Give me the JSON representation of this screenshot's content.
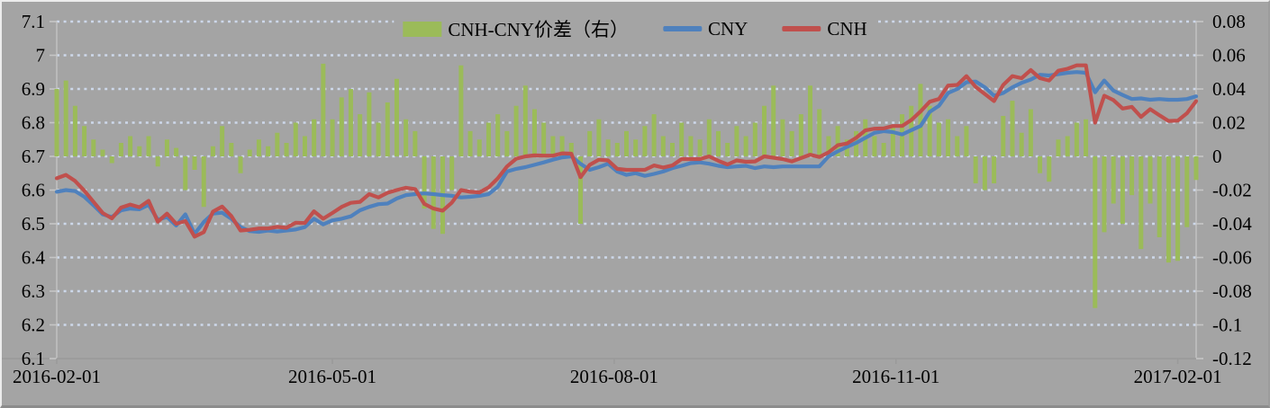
{
  "chart_data": {
    "type": "combo-bar-line",
    "title": "",
    "description_visible": false,
    "legend": [
      {
        "label": "CNH-CNY价差（右）",
        "type": "bar",
        "color": "#9BBB59"
      },
      {
        "label": "CNY",
        "type": "line",
        "color": "#4F81BD"
      },
      {
        "label": "CNH",
        "type": "line",
        "color": "#C0504D"
      }
    ],
    "left_axis": {
      "min": 6.1,
      "max": 7.1,
      "ticks": [
        "7.1",
        "7",
        "6.9",
        "6.8",
        "6.7",
        "6.6",
        "6.5",
        "6.4",
        "6.3",
        "6.2",
        "6.1"
      ]
    },
    "right_axis": {
      "min": -0.12,
      "max": 0.08,
      "ticks": [
        "0.08",
        "0.06",
        "0.04",
        "0.02",
        "0",
        "-0.02",
        "-0.04",
        "-0.06",
        "-0.08",
        "-0.1",
        "-0.12"
      ]
    },
    "x_axis": {
      "tick_labels": [
        "2016-02-01",
        "2016-05-01",
        "2016-08-01",
        "2016-11-01",
        "2017-02-01"
      ],
      "tick_days": [
        0,
        90,
        182,
        274,
        366
      ],
      "span_days": 372
    },
    "grid": "horizontal-dotted",
    "colors": {
      "bar": "#9BBB59",
      "cny": "#4F81BD",
      "cnh": "#C0504D",
      "plot_bg": "#A4A4A4",
      "gridline": "#CDD8EA",
      "axis": "#9A9A9A",
      "tick": "#C6C6C6",
      "text": "#000000"
    },
    "series": {
      "interval_days": 3,
      "cny": [
        6.595,
        6.6,
        6.597,
        6.58,
        6.555,
        6.528,
        6.52,
        6.54,
        6.545,
        6.543,
        6.556,
        6.512,
        6.52,
        6.495,
        6.528,
        6.47,
        6.505,
        6.53,
        6.533,
        6.515,
        6.49,
        6.478,
        6.476,
        6.48,
        6.477,
        6.48,
        6.483,
        6.49,
        6.515,
        6.498,
        6.51,
        6.515,
        6.522,
        6.54,
        6.55,
        6.558,
        6.56,
        6.575,
        6.585,
        6.588,
        6.59,
        6.588,
        6.585,
        6.583,
        6.578,
        6.58,
        6.583,
        6.588,
        6.61,
        6.655,
        6.663,
        6.668,
        6.675,
        6.682,
        6.69,
        6.697,
        6.7,
        6.678,
        6.66,
        6.668,
        6.678,
        6.655,
        6.645,
        6.65,
        6.642,
        6.648,
        6.655,
        6.665,
        6.672,
        6.68,
        6.682,
        6.678,
        6.672,
        6.668,
        6.67,
        6.672,
        6.665,
        6.67,
        6.668,
        6.67,
        6.67,
        6.67,
        6.67,
        6.67,
        6.7,
        6.715,
        6.728,
        6.74,
        6.755,
        6.77,
        6.775,
        6.772,
        6.765,
        6.778,
        6.79,
        6.832,
        6.85,
        6.888,
        6.9,
        6.92,
        6.922,
        6.905,
        6.88,
        6.888,
        6.905,
        6.918,
        6.928,
        6.942,
        6.94,
        6.944,
        6.948,
        6.95,
        6.948,
        6.89,
        6.925,
        6.895,
        6.882,
        6.87,
        6.872,
        6.868,
        6.87,
        6.868,
        6.868,
        6.87,
        6.878
      ],
      "cnh": [
        6.635,
        6.645,
        6.627,
        6.598,
        6.565,
        6.532,
        6.516,
        6.548,
        6.557,
        6.549,
        6.568,
        6.506,
        6.53,
        6.5,
        6.508,
        6.462,
        6.475,
        6.536,
        6.551,
        6.523,
        6.48,
        6.482,
        6.486,
        6.486,
        6.491,
        6.488,
        6.503,
        6.502,
        6.537,
        6.515,
        6.532,
        6.55,
        6.562,
        6.565,
        6.588,
        6.578,
        6.592,
        6.6,
        6.607,
        6.603,
        6.559,
        6.545,
        6.539,
        6.563,
        6.6,
        6.595,
        6.593,
        6.608,
        6.635,
        6.67,
        6.693,
        6.7,
        6.703,
        6.702,
        6.702,
        6.709,
        6.708,
        6.638,
        6.675,
        6.69,
        6.688,
        6.663,
        6.66,
        6.66,
        6.66,
        6.673,
        6.667,
        6.673,
        6.692,
        6.692,
        6.692,
        6.7,
        6.687,
        6.676,
        6.688,
        6.684,
        6.685,
        6.7,
        6.696,
        6.692,
        6.685,
        6.695,
        6.705,
        6.698,
        6.712,
        6.733,
        6.738,
        6.755,
        6.777,
        6.782,
        6.783,
        6.79,
        6.79,
        6.808,
        6.833,
        6.862,
        6.87,
        6.91,
        6.912,
        6.938,
        6.906,
        6.885,
        6.864,
        6.912,
        6.938,
        6.932,
        6.956,
        6.932,
        6.925,
        6.954,
        6.96,
        6.97,
        6.97,
        6.8,
        6.88,
        6.867,
        6.842,
        6.847,
        6.817,
        6.84,
        6.822,
        6.805,
        6.806,
        6.828,
        6.864
      ],
      "spread": [
        0.04,
        0.045,
        0.03,
        0.018,
        0.01,
        0.004,
        -0.004,
        0.008,
        0.012,
        0.006,
        0.012,
        -0.006,
        0.01,
        0.005,
        -0.02,
        -0.008,
        -0.03,
        0.006,
        0.018,
        0.008,
        -0.01,
        0.004,
        0.01,
        0.006,
        0.014,
        0.008,
        0.02,
        0.012,
        0.022,
        0.055,
        0.022,
        0.035,
        0.04,
        0.025,
        0.038,
        0.02,
        0.032,
        0.046,
        0.022,
        0.015,
        -0.031,
        -0.043,
        -0.046,
        -0.02,
        0.054,
        0.015,
        0.01,
        0.02,
        0.025,
        0.015,
        0.03,
        0.042,
        0.028,
        0.02,
        0.012,
        0.012,
        0.008,
        -0.04,
        0.015,
        0.022,
        0.01,
        0.008,
        0.015,
        0.01,
        0.018,
        0.025,
        0.012,
        0.008,
        0.02,
        0.012,
        0.01,
        0.022,
        0.015,
        0.008,
        0.018,
        0.012,
        0.02,
        0.03,
        0.042,
        0.022,
        0.015,
        0.025,
        0.042,
        0.028,
        0.012,
        0.018,
        0.01,
        0.015,
        0.022,
        0.012,
        0.008,
        0.018,
        0.025,
        0.03,
        0.043,
        0.03,
        0.02,
        0.022,
        0.012,
        0.018,
        -0.016,
        -0.02,
        -0.016,
        0.024,
        0.033,
        0.014,
        0.028,
        -0.01,
        -0.015,
        0.01,
        0.012,
        0.02,
        0.022,
        -0.09,
        -0.045,
        -0.028,
        -0.04,
        -0.023,
        -0.055,
        -0.028,
        -0.048,
        -0.063,
        -0.062,
        -0.042,
        -0.014
      ]
    }
  }
}
